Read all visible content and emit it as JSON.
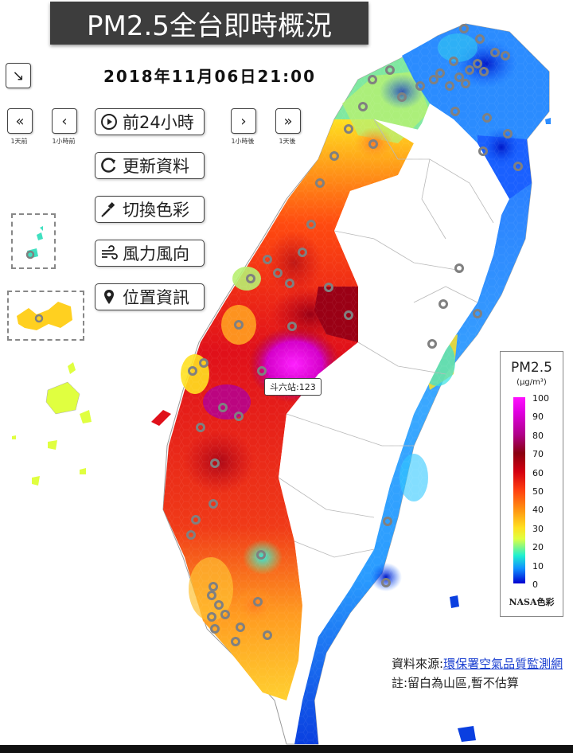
{
  "title": "PM2.5全台即時概況",
  "timestamp": "2018年11月06日21:00",
  "nav": {
    "expand_icon": "↘",
    "day_back_icon": "«",
    "hour_back_icon": "‹",
    "hour_fwd_icon": "›",
    "day_fwd_icon": "»",
    "day_back": "1天前",
    "hour_back": "1小時前",
    "hour_fwd": "1小時後",
    "day_fwd": "1天後"
  },
  "buttons": {
    "play": "前24小時",
    "refresh": "更新資料",
    "color": "切換色彩",
    "wind": "風力風向",
    "location": "位置資訊"
  },
  "tooltip": "斗六站:123",
  "legend": {
    "title": "PM2.5",
    "unit": "(μg/m³)",
    "ticks": [
      "100",
      "90",
      "80",
      "70",
      "60",
      "50",
      "40",
      "30",
      "20",
      "10",
      "0"
    ],
    "footer": "NASA色彩"
  },
  "source_label": "資料來源:",
  "source_link": "環保署空氣品質監測網",
  "note": "註:留白為山區,暫不估算",
  "colors": {
    "title_bg": "#3d3d3d",
    "link": "#1a3fd0",
    "station_ring": "#808080"
  }
}
